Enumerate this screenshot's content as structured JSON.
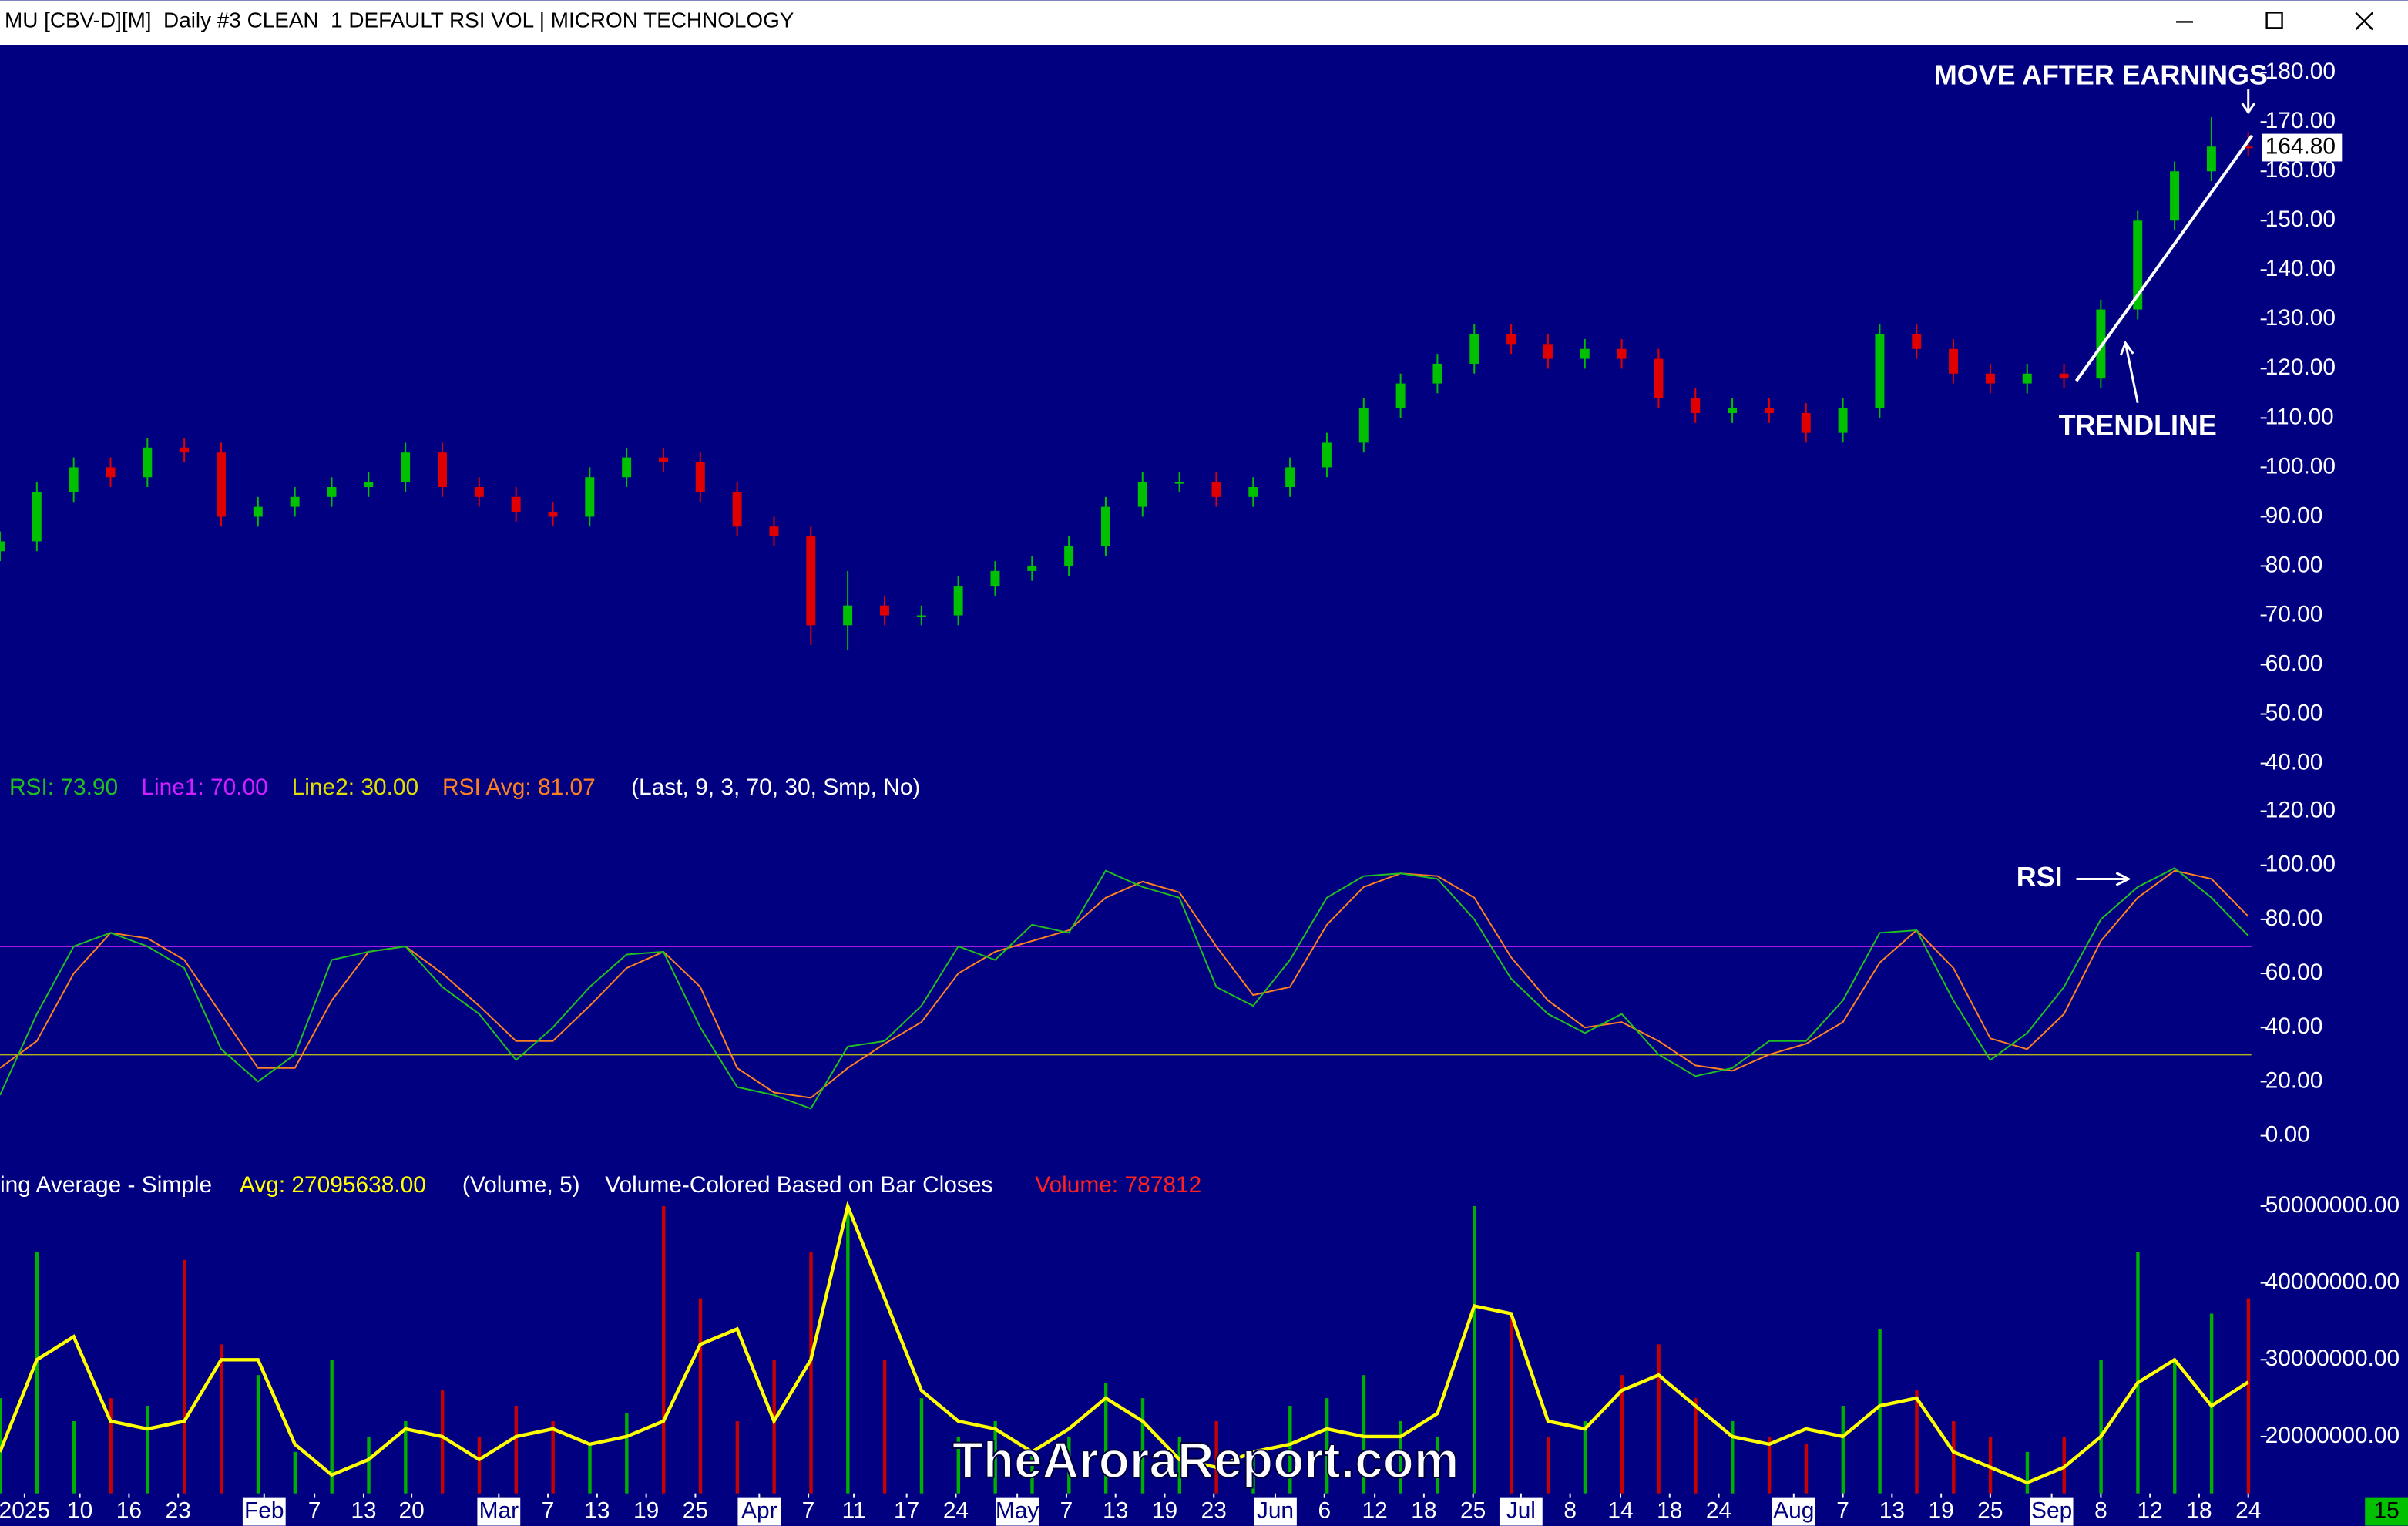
{
  "title": "MU [CBV-D][M]  Daily #3 CLEAN  1 DEFAULT RSI VOL | MICRON TECHNOLOGY",
  "watermark": "TheAroraReport.com",
  "corner_label": "15",
  "chart_data": [
    {
      "type": "candlestick",
      "x": [
        0,
        3,
        6,
        9,
        12,
        15,
        18,
        21,
        24,
        27,
        30,
        33,
        36,
        39,
        42,
        45,
        48,
        51,
        54,
        57,
        60,
        63,
        66,
        69,
        72,
        75,
        78,
        81,
        84,
        87,
        90,
        93,
        96,
        99,
        102,
        105,
        108,
        111,
        114,
        117,
        120,
        123,
        126,
        129,
        132,
        135,
        138,
        141,
        144,
        147,
        150,
        153,
        156,
        159,
        162,
        165,
        168,
        171,
        174,
        177,
        180,
        183
      ],
      "open": [
        83,
        85,
        95,
        100,
        98,
        104,
        103,
        90,
        92,
        94,
        96,
        97,
        103,
        96,
        94,
        91,
        90,
        98,
        102,
        101,
        95,
        88,
        86,
        68,
        72,
        70,
        70,
        76,
        79,
        80,
        84,
        92,
        97,
        97,
        94,
        96,
        100,
        105,
        112,
        117,
        121,
        127,
        125,
        122,
        124,
        122,
        114,
        111,
        112,
        111,
        107,
        112,
        127,
        124,
        119,
        117,
        119,
        118,
        132,
        150,
        160,
        165
      ],
      "high": [
        87,
        97,
        102,
        102,
        106,
        106,
        105,
        94,
        96,
        98,
        99,
        105,
        105,
        98,
        96,
        93,
        100,
        104,
        104,
        103,
        97,
        90,
        88,
        79,
        74,
        72,
        78,
        81,
        82,
        86,
        94,
        99,
        99,
        99,
        98,
        102,
        107,
        114,
        119,
        123,
        129,
        129,
        127,
        126,
        126,
        124,
        116,
        114,
        114,
        113,
        114,
        129,
        129,
        126,
        121,
        121,
        121,
        134,
        152,
        162,
        171,
        168
      ],
      "low": [
        81,
        83,
        93,
        96,
        96,
        101,
        88,
        88,
        90,
        92,
        94,
        95,
        94,
        92,
        89,
        88,
        88,
        96,
        99,
        93,
        86,
        84,
        64,
        63,
        68,
        68,
        68,
        74,
        77,
        78,
        82,
        90,
        95,
        92,
        92,
        94,
        98,
        103,
        110,
        115,
        119,
        123,
        120,
        120,
        120,
        112,
        109,
        109,
        109,
        105,
        105,
        110,
        122,
        117,
        115,
        115,
        116,
        116,
        130,
        148,
        158,
        163
      ],
      "close": [
        85,
        95,
        100,
        98,
        104,
        103,
        90,
        92,
        94,
        96,
        97,
        103,
        96,
        94,
        91,
        90,
        98,
        102,
        101,
        95,
        88,
        86,
        68,
        72,
        70,
        70,
        76,
        79,
        80,
        84,
        92,
        97,
        97,
        94,
        96,
        100,
        105,
        112,
        117,
        121,
        127,
        125,
        122,
        124,
        122,
        114,
        111,
        112,
        111,
        107,
        112,
        127,
        124,
        119,
        117,
        119,
        118,
        132,
        150,
        160,
        165,
        164.8
      ],
      "up_color": "#00c000",
      "down_color": "#e00000",
      "xlim": [
        0,
        184
      ],
      "ylim": [
        39,
        185.3
      ],
      "yticks": [
        {
          "value": 180,
          "label": "180.00"
        },
        {
          "value": 170,
          "label": "170.00"
        },
        {
          "value": 160,
          "label": "160.00"
        },
        {
          "value": 150,
          "label": "150.00"
        },
        {
          "value": 140,
          "label": "140.00"
        },
        {
          "value": 130,
          "label": "130.00"
        },
        {
          "value": 120,
          "label": "120.00"
        },
        {
          "value": 110,
          "label": "110.00"
        },
        {
          "value": 100,
          "label": "100.00"
        },
        {
          "value": 90,
          "label": "90.00"
        },
        {
          "value": 80,
          "label": "80.00"
        },
        {
          "value": 70,
          "label": "70.00"
        },
        {
          "value": 60,
          "label": "60.00"
        },
        {
          "value": 50,
          "label": "50.00"
        },
        {
          "value": 40,
          "label": "40.00"
        }
      ],
      "last_price": {
        "value": 164.8,
        "label": "164.80"
      },
      "trendline": {
        "x": [
          169,
          183.3
        ],
        "values": [
          117.5,
          167.2
        ],
        "color": "#ffffff"
      },
      "annotations": [
        "MOVE AFTER EARNINGS",
        "TRENDLINE"
      ]
    },
    {
      "type": "line",
      "x": [
        0,
        3,
        6,
        9,
        12,
        15,
        18,
        21,
        24,
        27,
        30,
        33,
        36,
        39,
        42,
        45,
        48,
        51,
        54,
        57,
        60,
        63,
        66,
        69,
        72,
        75,
        78,
        81,
        84,
        87,
        90,
        93,
        96,
        99,
        102,
        105,
        108,
        111,
        114,
        117,
        120,
        123,
        126,
        129,
        132,
        135,
        138,
        141,
        144,
        147,
        150,
        153,
        156,
        159,
        162,
        165,
        168,
        171,
        174,
        177,
        180,
        183
      ],
      "series": [
        {
          "name": "RSI: 73.90",
          "color": "#20c020",
          "values": [
            15,
            45,
            70,
            75,
            70,
            62,
            32,
            20,
            30,
            65,
            68,
            70,
            55,
            45,
            28,
            40,
            55,
            67,
            68,
            40,
            18,
            15,
            10,
            33,
            35,
            48,
            70,
            65,
            78,
            75,
            98,
            92,
            88,
            55,
            48,
            65,
            88,
            96,
            97,
            95,
            80,
            58,
            45,
            38,
            45,
            30,
            22,
            25,
            35,
            35,
            50,
            75,
            76,
            50,
            28,
            38,
            55,
            80,
            92,
            99,
            88,
            73.9
          ]
        },
        {
          "name": "RSI Avg: 81.07",
          "color": "#ff8020",
          "values": [
            25,
            35,
            60,
            75,
            73,
            65,
            45,
            25,
            25,
            50,
            68,
            70,
            60,
            48,
            35,
            35,
            48,
            62,
            68,
            55,
            25,
            16,
            14,
            25,
            34,
            42,
            60,
            68,
            72,
            76,
            88,
            94,
            90,
            70,
            52,
            55,
            78,
            92,
            97,
            96,
            88,
            66,
            50,
            40,
            42,
            35,
            26,
            24,
            30,
            34,
            42,
            64,
            76,
            62,
            36,
            32,
            45,
            72,
            88,
            98,
            95,
            81.07
          ]
        }
      ],
      "hlines": [
        {
          "value": 70,
          "label": "Line1: 70.00",
          "color": "#d020ff"
        },
        {
          "value": 30,
          "label": "Line2: 30.00",
          "color": "#e0e000"
        }
      ],
      "params": "(Last, 9, 3, 70, 30, Smp, No)",
      "annotation": "RSI",
      "xlim": [
        0,
        184
      ],
      "ylim": [
        -9,
        133
      ],
      "yticks": [
        {
          "value": 0,
          "label": "0.00"
        },
        {
          "value": 20,
          "label": "20.00"
        },
        {
          "value": 40,
          "label": "40.00"
        },
        {
          "value": 60,
          "label": "60.00"
        },
        {
          "value": 80,
          "label": "80.00"
        },
        {
          "value": 100,
          "label": "100.00"
        },
        {
          "value": 120,
          "label": "120.00"
        }
      ]
    },
    {
      "type": "bar",
      "x": [
        0,
        3,
        6,
        9,
        12,
        15,
        18,
        21,
        24,
        27,
        30,
        33,
        36,
        39,
        42,
        45,
        48,
        51,
        54,
        57,
        60,
        63,
        66,
        69,
        72,
        75,
        78,
        81,
        84,
        87,
        90,
        93,
        96,
        99,
        102,
        105,
        108,
        111,
        114,
        117,
        120,
        123,
        126,
        129,
        132,
        135,
        138,
        141,
        144,
        147,
        150,
        153,
        156,
        159,
        162,
        165,
        168,
        171,
        174,
        177,
        180,
        183
      ],
      "values": [
        25000000,
        44000000,
        22000000,
        25000000,
        24000000,
        43000000,
        32000000,
        28000000,
        18000000,
        30000000,
        20000000,
        22000000,
        26000000,
        20000000,
        24000000,
        22000000,
        19000000,
        23000000,
        50000000,
        38000000,
        22000000,
        30000000,
        44000000,
        50000000,
        30000000,
        25000000,
        20000000,
        22000000,
        18000000,
        20000000,
        27000000,
        25000000,
        20000000,
        22000000,
        18000000,
        24000000,
        25000000,
        28000000,
        22000000,
        20000000,
        50000000,
        36000000,
        20000000,
        22000000,
        28000000,
        32000000,
        25000000,
        22000000,
        20000000,
        19000000,
        24000000,
        34000000,
        26000000,
        22000000,
        20000000,
        18000000,
        20000000,
        30000000,
        44000000,
        30000000,
        36000000,
        38000000
      ],
      "up_color": "#00b000",
      "down_color": "#c80000",
      "avg": {
        "name": "Avg: 27095638.00",
        "color": "#ffff00",
        "values": [
          18000000,
          30000000,
          33000000,
          22000000,
          21000000,
          22000000,
          30000000,
          30000000,
          19000000,
          15000000,
          17000000,
          21000000,
          20000000,
          17000000,
          20000000,
          21000000,
          19000000,
          20000000,
          22000000,
          32000000,
          34000000,
          22000000,
          30000000,
          50000000,
          38000000,
          26000000,
          22000000,
          21000000,
          18000000,
          21000000,
          25000000,
          22000000,
          17000000,
          16000000,
          18000000,
          19000000,
          21000000,
          20000000,
          20000000,
          23000000,
          37000000,
          36000000,
          22000000,
          21000000,
          26000000,
          28000000,
          24000000,
          20000000,
          19000000,
          21000000,
          20000000,
          24000000,
          25000000,
          18000000,
          16000000,
          14000000,
          16000000,
          20000000,
          27000000,
          30000000,
          24000000,
          27095638
        ]
      },
      "texts": [
        "ing Average - Simple",
        "(Volume, 5)",
        "Volume-Colored Based on Bar Closes"
      ],
      "current_volume": "Volume: 787812",
      "xlim": [
        0,
        184
      ],
      "ylim": [
        12600000,
        51400000
      ],
      "yticks": [
        {
          "value": 20000000,
          "label": "20000000.00"
        },
        {
          "value": 30000000,
          "label": "30000000.00"
        },
        {
          "value": 40000000,
          "label": "40000000.00"
        },
        {
          "value": 50000000,
          "label": "50000000.00"
        }
      ],
      "xticks": [
        {
          "value": 2,
          "label": "2025"
        },
        {
          "value": 6.5,
          "label": "10"
        },
        {
          "value": 10.5,
          "label": "16"
        },
        {
          "value": 14.5,
          "label": "23"
        },
        {
          "value": 21.5,
          "label": "Feb"
        },
        {
          "value": 25.6,
          "label": "7"
        },
        {
          "value": 29.6,
          "label": "13"
        },
        {
          "value": 33.5,
          "label": "20"
        },
        {
          "value": 40.6,
          "label": "Mar"
        },
        {
          "value": 44.6,
          "label": "7"
        },
        {
          "value": 48.6,
          "label": "13"
        },
        {
          "value": 52.6,
          "label": "19"
        },
        {
          "value": 56.6,
          "label": "25"
        },
        {
          "value": 61.8,
          "label": "Apr"
        },
        {
          "value": 65.8,
          "label": "7"
        },
        {
          "value": 69.5,
          "label": "11"
        },
        {
          "value": 73.8,
          "label": "17"
        },
        {
          "value": 77.8,
          "label": "24"
        },
        {
          "value": 82.8,
          "label": "May"
        },
        {
          "value": 86.8,
          "label": "7"
        },
        {
          "value": 90.8,
          "label": "13"
        },
        {
          "value": 94.8,
          "label": "19"
        },
        {
          "value": 98.8,
          "label": "23"
        },
        {
          "value": 103.8,
          "label": "Jun"
        },
        {
          "value": 107.8,
          "label": "6"
        },
        {
          "value": 111.9,
          "label": "12"
        },
        {
          "value": 115.9,
          "label": "18"
        },
        {
          "value": 119.9,
          "label": "25"
        },
        {
          "value": 123.8,
          "label": "Jul"
        },
        {
          "value": 127.8,
          "label": "8"
        },
        {
          "value": 131.9,
          "label": "14"
        },
        {
          "value": 135.9,
          "label": "18"
        },
        {
          "value": 139.9,
          "label": "24"
        },
        {
          "value": 146,
          "label": "Aug"
        },
        {
          "value": 150,
          "label": "7"
        },
        {
          "value": 154,
          "label": "13"
        },
        {
          "value": 158,
          "label": "19"
        },
        {
          "value": 162,
          "label": "25"
        },
        {
          "value": 167,
          "label": "Sep"
        },
        {
          "value": 171,
          "label": "8"
        },
        {
          "value": 175,
          "label": "12"
        },
        {
          "value": 179,
          "label": "18"
        },
        {
          "value": 183,
          "label": "24"
        }
      ]
    }
  ]
}
